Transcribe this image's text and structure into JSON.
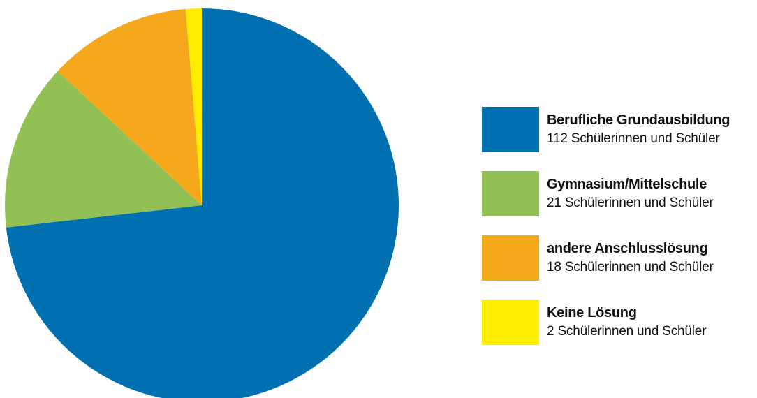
{
  "chart_data": {
    "type": "pie",
    "title": "",
    "start_angle_deg": 0,
    "direction": "clockwise",
    "slices": [
      {
        "label": "Berufliche Grundausbildung",
        "value": 112,
        "value_label": "112 Schülerinnen und Schüler",
        "color": "#0070b1"
      },
      {
        "label": "Gymnasium/Mittelschule",
        "value": 21,
        "value_label": "21 Schülerinnen und Schüler",
        "color": "#93c054"
      },
      {
        "label": "andere Anschlusslösung",
        "value": 18,
        "value_label": "18 Schülerinnen und Schüler",
        "color": "#f5a81c"
      },
      {
        "label": "Keine Lösung",
        "value": 2,
        "value_label": "2 Schülerinnen und Schüler",
        "color": "#ffed00"
      }
    ],
    "legend_position": "right"
  }
}
